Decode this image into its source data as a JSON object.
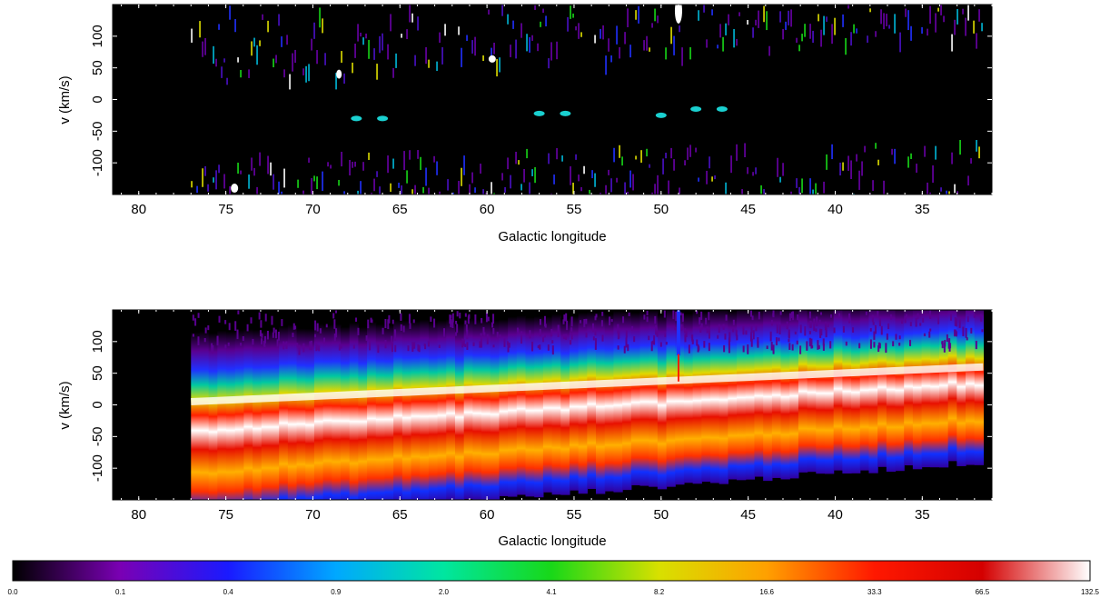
{
  "chart_data": [
    {
      "type": "heatmap",
      "title": "",
      "xlabel": "Galactic longitude",
      "ylabel": "v (km/s)",
      "xlim": [
        81.5,
        31
      ],
      "ylim": [
        -150,
        150
      ],
      "x_ticks": [
        80,
        75,
        70,
        65,
        60,
        55,
        50,
        45,
        40,
        35
      ],
      "y_ticks": [
        100,
        50,
        0,
        -50,
        -100
      ],
      "x_tick_labels": [
        "80",
        "75",
        "70",
        "65",
        "60",
        "55",
        "50",
        "45",
        "40",
        "35"
      ],
      "y_tick_labels": [
        "100",
        "50",
        "0",
        "-50",
        "-100"
      ],
      "data_extent_l": [
        77,
        31.5
      ],
      "description_features": [
        {
          "l": 49,
          "v": 140,
          "level": "high"
        },
        {
          "l": 59.7,
          "v": 64,
          "level": "high"
        },
        {
          "l": 74.5,
          "v": -140,
          "level": "high"
        }
      ]
    },
    {
      "type": "heatmap",
      "title": "",
      "xlabel": "Galactic longitude",
      "ylabel": "v (km/s)",
      "xlim": [
        81.5,
        31
      ],
      "ylim": [
        -150,
        150
      ],
      "x_ticks": [
        80,
        75,
        70,
        65,
        60,
        55,
        50,
        45,
        40,
        35
      ],
      "y_ticks": [
        100,
        50,
        0,
        -50,
        -100
      ],
      "x_tick_labels": [
        "80",
        "75",
        "70",
        "65",
        "60",
        "55",
        "50",
        "45",
        "40",
        "35"
      ],
      "y_tick_labels": [
        "100",
        "50",
        "0",
        "-50",
        "-100"
      ],
      "data_extent_l": [
        77,
        31.5
      ],
      "ridge": {
        "l_start": 77,
        "v_start": 5,
        "l_end": 31.5,
        "v_end": 60
      }
    }
  ],
  "colorbar": {
    "tick_values": [
      "0.0",
      "0.1",
      "0.4",
      "0.9",
      "2.0",
      "4.1",
      "8.2",
      "16.6",
      "33.3",
      "66.5",
      "132.5"
    ],
    "stops": [
      "#000000",
      "#7a00b4",
      "#1a1aff",
      "#00a8ff",
      "#00e6a0",
      "#18d818",
      "#d8e000",
      "#ffa000",
      "#ff1800",
      "#d40000",
      "#ffffff"
    ]
  }
}
